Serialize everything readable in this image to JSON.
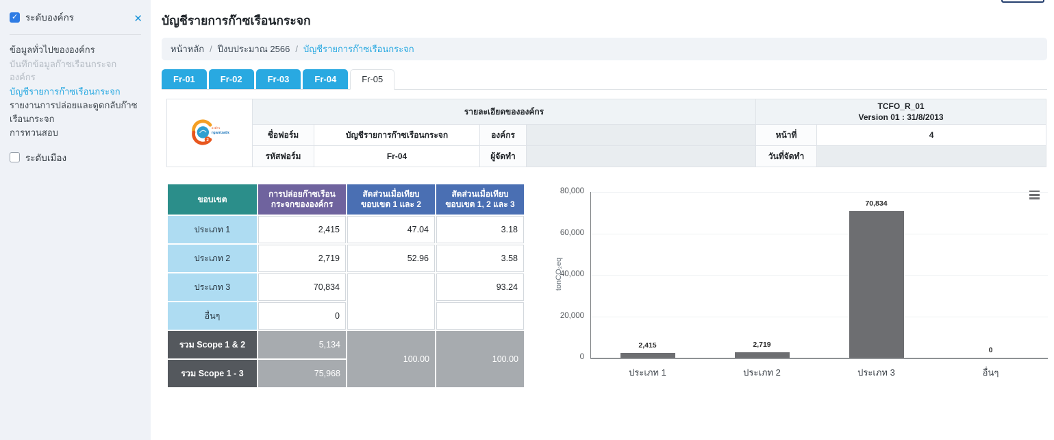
{
  "colors": {
    "accent_blue": "#29a9e1",
    "checkbox_blue": "#2e7ce4",
    "teal_header": "#2b8e8a",
    "purple_header": "#6f639e",
    "blue_header": "#4a6fb3",
    "light_blue_row": "#aedcf2",
    "dark_gray_row": "#54585d",
    "mid_gray_cell": "#a7abaf",
    "bar_gray": "#6d6e71"
  },
  "icons": {
    "close": "✕",
    "chart_menu": "hamburger-menu"
  },
  "sidebar": {
    "org_level": {
      "label": "ระดับองค์กร",
      "checked": true
    },
    "city_level": {
      "label": "ระดับเมือง",
      "checked": false
    },
    "menu": [
      {
        "label": "ข้อมูลทั่วไปขององค์กร",
        "state": "normal"
      },
      {
        "label": "บันทึกข้อมูลก๊าซเรือนกระจกองค์กร",
        "state": "disabled"
      },
      {
        "label": "บัญชีรายการก๊าซเรือนกระจก",
        "state": "active"
      },
      {
        "label": "รายงานการปล่อยและดูดกลับก๊าซเรือนกระจก",
        "state": "normal"
      },
      {
        "label": "การทวนสอบ",
        "state": "normal"
      }
    ]
  },
  "header": {
    "title": "บัญชีรายการก๊าซเรือนกระจก"
  },
  "breadcrumb": {
    "items": [
      "หน้าหลัก",
      "ปีงบประมาณ 2566",
      "บัญชีรายการก๊าซเรือนกระจก"
    ]
  },
  "tabs": [
    {
      "label": "Fr-01",
      "selected": false
    },
    {
      "label": "Fr-02",
      "selected": false
    },
    {
      "label": "Fr-03",
      "selected": false
    },
    {
      "label": "Fr-04",
      "selected": false
    },
    {
      "label": "Fr-05",
      "selected": true
    }
  ],
  "form_header": {
    "details_title": "รายละเอียดขององค์กร",
    "doc_code": "TCFO_R_01",
    "doc_version": "Version 01 : 31/8/2013",
    "form_name_label": "ชื่อฟอร์ม",
    "form_name_value": "บัญชีรายการก๊าซเรือนกระจก",
    "org_label": "องค์กร",
    "org_value": "",
    "page_label": "หน้าที่",
    "page_value": "4",
    "form_code_label": "รหัสฟอร์ม",
    "form_code_value": "Fr-04",
    "author_label": "ผู้จัดทำ",
    "author_value": "",
    "date_label": "วันที่จัดทำ",
    "date_value": "",
    "logo": {
      "text_top": "องค์กร",
      "text_main": "rganization",
      "badge": "2"
    }
  },
  "table": {
    "headers": [
      "ขอบเขต",
      "การปล่อยก๊าซเรือนกระจกขององค์กร",
      "สัดส่วนเมื่อเทียบขอบเขต 1 และ 2",
      "สัดส่วนเมื่อเทียบขอบเขต 1, 2 และ 3"
    ],
    "rows": [
      {
        "label": "ประเภท 1",
        "emission": "2,415",
        "share12": "47.04",
        "share123": "3.18"
      },
      {
        "label": "ประเภท 2",
        "emission": "2,719",
        "share12": "52.96",
        "share123": "3.58"
      },
      {
        "label": "ประเภท 3",
        "emission": "70,834",
        "share12": "",
        "share123": "93.24"
      },
      {
        "label": "อื่นๆ",
        "emission": "0",
        "share123": ""
      }
    ],
    "summary": [
      {
        "label": "รวม Scope 1 & 2",
        "emission": "5,134"
      },
      {
        "label": "รวม Scope 1 - 3",
        "emission": "75,968"
      }
    ],
    "summary_share12": "100.00",
    "summary_share123": "100.00"
  },
  "chart_data": {
    "type": "bar",
    "categories": [
      "ประเภท 1",
      "ประเภท 2",
      "ประเภท 3",
      "อื่นๆ"
    ],
    "values": [
      2415,
      2719,
      70834,
      0
    ],
    "data_labels": [
      "2,415",
      "2,719",
      "70,834",
      "0"
    ],
    "title": "",
    "xlabel": "",
    "ylabel": "tonCO₂eq",
    "ylim": [
      0,
      80000
    ],
    "yticks": [
      0,
      20000,
      40000,
      60000,
      80000
    ],
    "ytick_labels": [
      "0",
      "20,000",
      "40,000",
      "60,000",
      "80,000"
    ],
    "grid": true,
    "legend": "none",
    "bar_color": "#6d6e71"
  }
}
